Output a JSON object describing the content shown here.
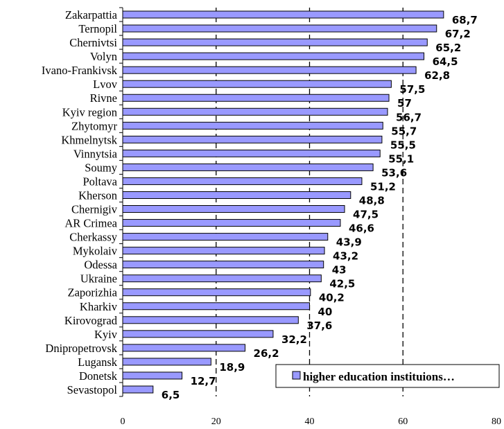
{
  "chart_data": {
    "type": "bar",
    "orientation": "horizontal",
    "categories": [
      "Zakarpattia",
      "Ternopil",
      "Chernivtsi",
      "Volyn",
      "Ivano-Frankivsk",
      "Lvov",
      "Rivne",
      "Kyiv region",
      "Zhytomyr",
      "Khmelnytsk",
      "Vinnytsia",
      "Soumy",
      "Poltava",
      "Kherson",
      "Chernigiv",
      "AR Crimea",
      "Cherkassy",
      "Mykolaiv",
      "Odessa",
      "Ukraine",
      "Zaporizhia",
      "Kharkiv",
      "Kirovograd",
      "Kyiv",
      "Dnipropetrovsk",
      "Lugansk",
      "Donetsk",
      "Sevastopol"
    ],
    "series": [
      {
        "name": "higher education instituions…",
        "values": [
          68.7,
          67.2,
          65.2,
          64.5,
          62.8,
          57.5,
          57,
          56.7,
          55.7,
          55.5,
          55.1,
          53.6,
          51.2,
          48.8,
          47.5,
          46.6,
          43.9,
          43.2,
          43,
          42.5,
          40.2,
          40,
          37.6,
          32.2,
          26.2,
          18.9,
          12.7,
          6.5
        ],
        "value_labels": [
          "68,7",
          "67,2",
          "65,2",
          "64,5",
          "62,8",
          "57,5",
          "57",
          "56,7",
          "55,7",
          "55,5",
          "55,1",
          "53,6",
          "51,2",
          "48,8",
          "47,5",
          "46,6",
          "43,9",
          "43,2",
          "43",
          "42,5",
          "40,2",
          "40",
          "37,6",
          "32,2",
          "26,2",
          "18,9",
          "12,7",
          "6,5"
        ]
      }
    ],
    "xlim": [
      0,
      80
    ],
    "x_ticks": [
      0,
      20,
      40,
      60,
      80
    ],
    "x_tick_labels": [
      "0",
      "20",
      "40",
      "60",
      "80"
    ],
    "grid": "vertical dashed",
    "legend": "bottom-right",
    "colors": {
      "bar_fill": "#9999ff",
      "bar_stroke": "#000000",
      "grid": "#000000"
    }
  }
}
